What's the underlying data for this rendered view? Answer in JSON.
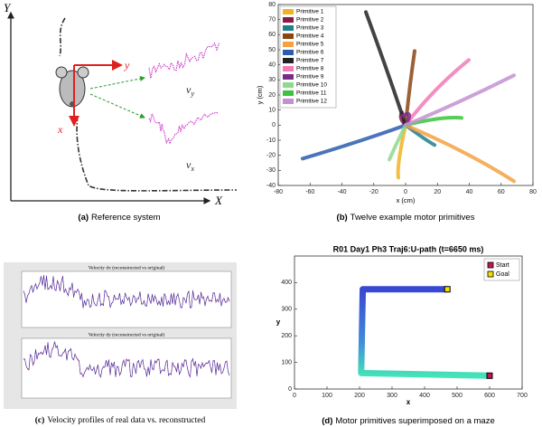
{
  "panel_a": {
    "axis_y": "Y",
    "axis_x": "X",
    "body_y": "y",
    "body_x": "x",
    "vy": {
      "base": "v",
      "sub": "y"
    },
    "vx": {
      "base": "v",
      "sub": "x"
    },
    "caption_label": "(a)",
    "caption": "Reference system"
  },
  "panel_b": {
    "xlabel": "x (cm)",
    "ylabel": "y (cm)",
    "xlim": [
      -80,
      80
    ],
    "ylim": [
      -40,
      80
    ],
    "xticks": [
      -80,
      -60,
      -40,
      -20,
      0,
      20,
      40,
      60,
      80
    ],
    "yticks": [
      -40,
      -30,
      -20,
      -10,
      0,
      10,
      20,
      30,
      40,
      50,
      60,
      70,
      80
    ],
    "legend": [
      {
        "name": "Primitive 1",
        "color": "#f0b323"
      },
      {
        "name": "Primitive 2",
        "color": "#8b1a4a"
      },
      {
        "name": "Primitive 3",
        "color": "#1f7f8c"
      },
      {
        "name": "Primitive 4",
        "color": "#8b4513"
      },
      {
        "name": "Primitive 5",
        "color": "#f5a142"
      },
      {
        "name": "Primitive 6",
        "color": "#2a5db0"
      },
      {
        "name": "Primitive 7",
        "color": "#222222"
      },
      {
        "name": "Primitive 8",
        "color": "#f27ab6"
      },
      {
        "name": "Primitive 9",
        "color": "#7a2a8a"
      },
      {
        "name": "Primitive 10",
        "color": "#8fd88f"
      },
      {
        "name": "Primitive 11",
        "color": "#3cc43c"
      },
      {
        "name": "Primitive 12",
        "color": "#c490d1"
      }
    ],
    "caption_label": "(b)",
    "caption": "Twelve example motor primitives"
  },
  "panel_c": {
    "titles": [
      "Velocity dx (reconstructed vs original)",
      "Velocity dy (reconstructed vs original)"
    ],
    "caption_label": "(c)",
    "caption": "Velocity profiles of real data vs. reconstructed"
  },
  "panel_d": {
    "title": "R01 Day1 Ph3 Traj6:U-path (t=6650 ms)",
    "xlabel": "x",
    "ylabel": "y",
    "xlim": [
      0,
      700
    ],
    "ylim": [
      0,
      500
    ],
    "xticks": [
      0,
      100,
      200,
      300,
      400,
      500,
      600,
      700
    ],
    "yticks": [
      0,
      100,
      200,
      300,
      400
    ],
    "legend": [
      {
        "name": "Start",
        "color": "#c2185b"
      },
      {
        "name": "Goal",
        "color": "#f5e000"
      }
    ],
    "caption_label": "(d)",
    "caption": "Motor primitives superimposed on a maze"
  }
}
